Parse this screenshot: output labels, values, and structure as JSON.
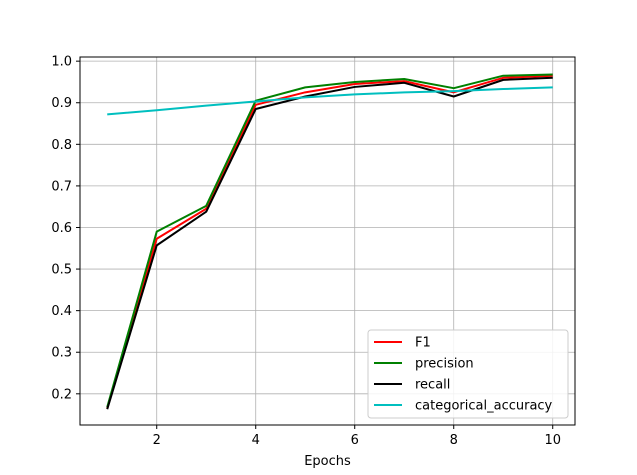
{
  "chart_data": {
    "type": "line",
    "title": "",
    "xlabel": "Epochs",
    "ylabel": "",
    "x": [
      1,
      2,
      3,
      4,
      5,
      6,
      7,
      8,
      9,
      10
    ],
    "xlim": [
      0.45,
      10.45
    ],
    "ylim": [
      0.125,
      1.01
    ],
    "xticks": [
      2,
      4,
      6,
      8,
      10
    ],
    "yticks": [
      0.2,
      0.3,
      0.4,
      0.5,
      0.6,
      0.7,
      0.8,
      0.9,
      1.0
    ],
    "xtick_labels": [
      "2",
      "4",
      "6",
      "8",
      "10"
    ],
    "ytick_labels": [
      "0.2",
      "0.3",
      "0.4",
      "0.5",
      "0.6",
      "0.7",
      "0.8",
      "0.9",
      "1.0"
    ],
    "grid": true,
    "legend_position": "bottom-right",
    "series": [
      {
        "name": "F1",
        "color": "#ff0000",
        "values": [
          0.165,
          0.573,
          0.645,
          0.895,
          0.925,
          0.945,
          0.952,
          0.925,
          0.96,
          0.965
        ]
      },
      {
        "name": "precision",
        "color": "#008000",
        "values": [
          0.168,
          0.59,
          0.652,
          0.905,
          0.937,
          0.95,
          0.957,
          0.935,
          0.965,
          0.968
        ]
      },
      {
        "name": "recall",
        "color": "#000000",
        "values": [
          0.163,
          0.557,
          0.638,
          0.885,
          0.915,
          0.938,
          0.948,
          0.915,
          0.955,
          0.96
        ]
      },
      {
        "name": "categorical_accuracy",
        "color": "#00bfbf",
        "values": [
          0.872,
          0.882,
          0.893,
          0.903,
          0.913,
          0.92,
          0.925,
          0.928,
          0.933,
          0.937
        ]
      }
    ]
  }
}
